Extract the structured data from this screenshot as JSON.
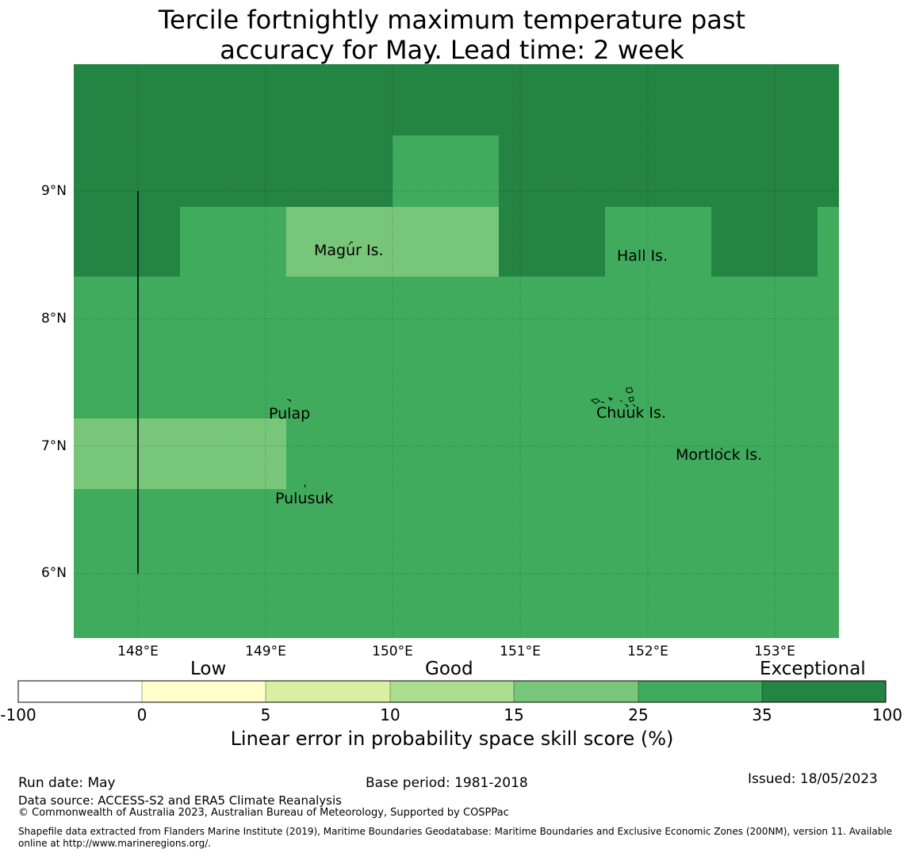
{
  "title": {
    "line1": "Tercile fortnightly maximum temperature past",
    "line2": "accuracy for May. Lead time: 2 week"
  },
  "map": {
    "lat_labels": [
      "9°N",
      "8°N",
      "7°N",
      "6°N"
    ],
    "lon_labels": [
      "148°E",
      "149°E",
      "150°E",
      "151°E",
      "152°E",
      "153°E"
    ],
    "places": [
      "Magur Is.",
      "Hall Is.",
      "Pulap",
      "Chuuk Is.",
      "Mortlock Is.",
      "Pulusuk"
    ]
  },
  "colorbar": {
    "categories": [
      "Low",
      "Good",
      "Exceptional"
    ],
    "ticks": [
      "-100",
      "0",
      "5",
      "10",
      "15",
      "25",
      "35",
      "100"
    ],
    "colors": [
      "#ffffff",
      "#ffffcc",
      "#d9f0a3",
      "#addd8e",
      "#78c679",
      "#41ab5d",
      "#238443"
    ],
    "label": "Linear error in probability space skill score (%)"
  },
  "footer": {
    "run_date": "Run date: May",
    "base_period": "Base period: 1981-2018",
    "issued": "Issued: 18/05/2023",
    "data_source": "Data source: ACCESS-S2 and ERA5 Climate Reanalysis",
    "copyright": "© Commonwealth of Australia 2023, Australian Bureau of Meteorology, Supported by COSPPac",
    "shapefile_line1": "Shapefile data extracted from Flanders Marine Institute (2019), Maritime Boundaries Geodatabase: Maritime Boundaries and Exclusive Economic Zones (200NM), version 11. Available",
    "shapefile_line2": "online at http://www.marineregions.org/."
  }
}
